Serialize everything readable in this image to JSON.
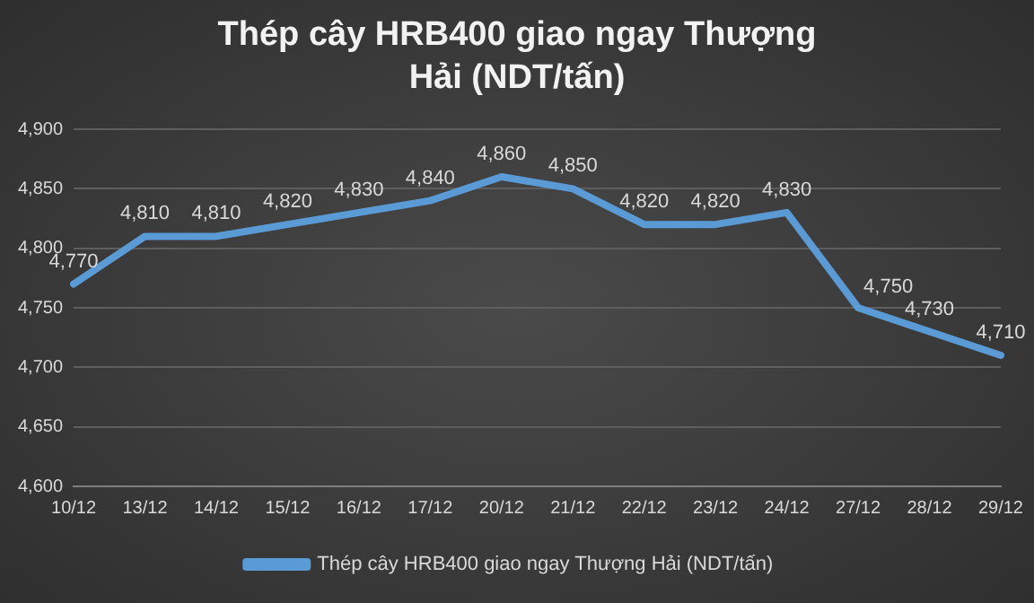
{
  "chart_data": {
    "type": "line",
    "title": "Thép cây HRB400 giao ngay Thượng Hải (NDT/tấn)",
    "categories": [
      "10/12",
      "13/12",
      "14/12",
      "15/12",
      "16/12",
      "17/12",
      "20/12",
      "21/12",
      "22/12",
      "23/12",
      "24/12",
      "27/12",
      "28/12",
      "29/12"
    ],
    "series": [
      {
        "name": "Thép cây HRB400 giao ngay Thượng Hải (NDT/tấn)",
        "color": "#5b9bd5",
        "values": [
          4770,
          4810,
          4810,
          4820,
          4830,
          4840,
          4860,
          4850,
          4820,
          4820,
          4830,
          4750,
          4730,
          4710
        ],
        "value_labels": [
          "4,770",
          "4,810",
          "4,810",
          "4,820",
          "4,830",
          "4,840",
          "4,860",
          "4,850",
          "4,820",
          "4,820",
          "4,830",
          "4,750",
          "4,730",
          "4,710"
        ]
      }
    ],
    "ylim": [
      4600,
      4900
    ],
    "yticks": [
      {
        "value": 4600,
        "label": "4,600"
      },
      {
        "value": 4650,
        "label": "4,650"
      },
      {
        "value": 4700,
        "label": "4,700"
      },
      {
        "value": 4750,
        "label": "4,750"
      },
      {
        "value": 4800,
        "label": "4,800"
      },
      {
        "value": 4850,
        "label": "4,850"
      },
      {
        "value": 4900,
        "label": "4,900"
      }
    ],
    "grid": "y",
    "legend": "bottom",
    "marker": "none",
    "line_style": "solid"
  }
}
